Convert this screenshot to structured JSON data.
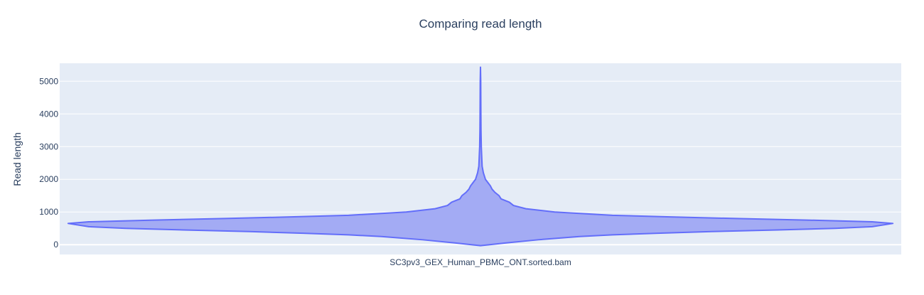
{
  "chart_data": {
    "type": "violin",
    "title": "Comparing read length",
    "ylabel": "Read length",
    "xlabel": "",
    "categories": [
      "SC3pv3_GEX_Human_PBMC_ONT.sorted.bam"
    ],
    "ylim": [
      -300,
      5550
    ],
    "yticks": [
      0,
      1000,
      2000,
      3000,
      4000,
      5000
    ],
    "grid": true,
    "colors": {
      "plot_bg": "#e5ecf6",
      "grid": "#ffffff",
      "violin_fill": "#a3abf4",
      "violin_line": "#636efa",
      "text": "#2a3f5f"
    },
    "series": [
      {
        "category": "SC3pv3_GEX_Human_PBMC_ONT.sorted.bam",
        "min": -30,
        "max": 5430,
        "density_profile": [
          [
            -30,
            0.0
          ],
          [
            50,
            0.06
          ],
          [
            150,
            0.14
          ],
          [
            250,
            0.24
          ],
          [
            300,
            0.32
          ],
          [
            350,
            0.43
          ],
          [
            400,
            0.56
          ],
          [
            450,
            0.72
          ],
          [
            500,
            0.86
          ],
          [
            550,
            0.95
          ],
          [
            650,
            1.0
          ],
          [
            700,
            0.95
          ],
          [
            750,
            0.8
          ],
          [
            800,
            0.62
          ],
          [
            850,
            0.46
          ],
          [
            900,
            0.32
          ],
          [
            1000,
            0.18
          ],
          [
            1100,
            0.11
          ],
          [
            1200,
            0.08
          ],
          [
            1300,
            0.07
          ],
          [
            1400,
            0.05
          ],
          [
            1500,
            0.045
          ],
          [
            1600,
            0.035
          ],
          [
            1700,
            0.028
          ],
          [
            1800,
            0.024
          ],
          [
            1900,
            0.018
          ],
          [
            2000,
            0.012
          ],
          [
            2200,
            0.007
          ],
          [
            2400,
            0.004
          ],
          [
            2700,
            0.003
          ],
          [
            3000,
            0.002
          ],
          [
            3500,
            0.0013
          ],
          [
            4000,
            0.001
          ],
          [
            4500,
            0.0008
          ],
          [
            5000,
            0.0006
          ],
          [
            5430,
            0.0
          ]
        ]
      }
    ]
  }
}
